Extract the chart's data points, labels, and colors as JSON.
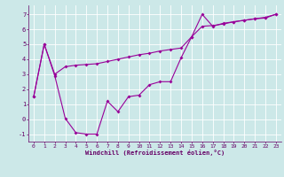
{
  "bg_color": "#cce8e8",
  "grid_color": "#ffffff",
  "line_color": "#990099",
  "tick_color": "#660066",
  "xlim": [
    -0.5,
    23.5
  ],
  "ylim": [
    -1.5,
    7.6
  ],
  "xticks": [
    0,
    1,
    2,
    3,
    4,
    5,
    6,
    7,
    8,
    9,
    10,
    11,
    12,
    13,
    14,
    15,
    16,
    17,
    18,
    19,
    20,
    21,
    22,
    23
  ],
  "yticks": [
    -1,
    0,
    1,
    2,
    3,
    4,
    5,
    6,
    7
  ],
  "xlabel": "Windchill (Refroidissement éolien,°C)",
  "line1_x": [
    0,
    1,
    2,
    3,
    4,
    5,
    6,
    7,
    8,
    9,
    10,
    11,
    12,
    13,
    14,
    15,
    16,
    17,
    18,
    19,
    20,
    21,
    22,
    23
  ],
  "line1_y": [
    1.5,
    5.0,
    3.0,
    3.5,
    3.6,
    3.65,
    3.7,
    3.85,
    4.0,
    4.15,
    4.3,
    4.4,
    4.55,
    4.65,
    4.75,
    5.5,
    6.2,
    6.25,
    6.35,
    6.5,
    6.6,
    6.7,
    6.75,
    7.0
  ],
  "line2_x": [
    0,
    1,
    2,
    3,
    4,
    5,
    6,
    7,
    8,
    9,
    10,
    11,
    12,
    13,
    14,
    15,
    16,
    17,
    18,
    19,
    20,
    21,
    22,
    23
  ],
  "line2_y": [
    1.5,
    5.0,
    2.9,
    0.05,
    -0.9,
    -1.0,
    -1.0,
    1.2,
    0.5,
    1.5,
    1.6,
    2.3,
    2.5,
    2.5,
    4.1,
    5.5,
    7.0,
    6.2,
    6.4,
    6.5,
    6.6,
    6.7,
    6.8,
    7.0
  ],
  "marker_size": 2.0,
  "linewidth": 0.8,
  "xlabel_fontsize": 5.0,
  "tick_fontsize": 4.5
}
